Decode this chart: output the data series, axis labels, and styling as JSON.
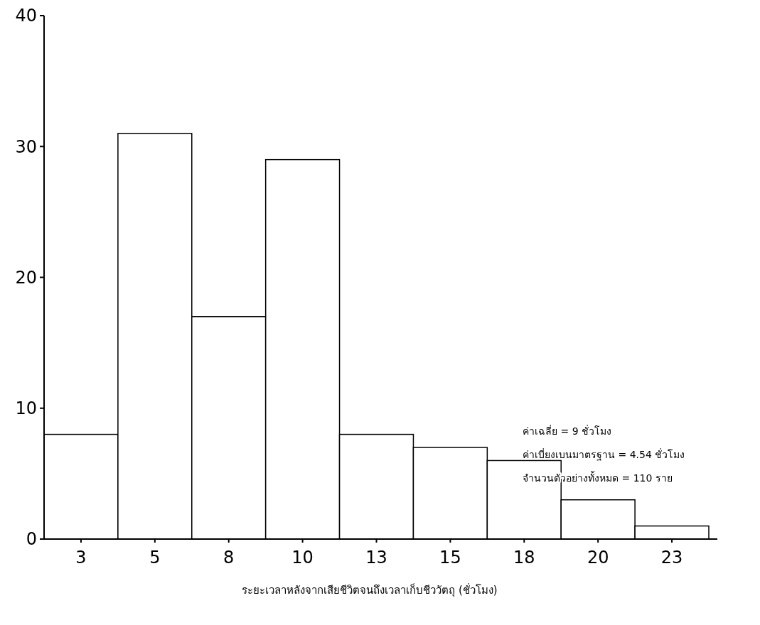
{
  "chart_data": {
    "type": "bar",
    "categories": [
      "3",
      "5",
      "8",
      "10",
      "13",
      "15",
      "18",
      "20",
      "23"
    ],
    "values": [
      8,
      31,
      17,
      29,
      8,
      7,
      6,
      3,
      1
    ],
    "color": "#ffffff",
    "ylim": [
      0,
      40
    ],
    "yticks": [
      0,
      10,
      20,
      30,
      40
    ],
    "grid": false,
    "xlabel": "ระยะเวลาหลังจากเสียชีวิตจนถึงเวลาเก็บชีววัตถุ (ชั่วโมง)",
    "annotations": [
      "ค่าเฉลี่ย = 9 ชั่วโมง",
      "ค่าเบี่ยงเบนมาตรฐาน = 4.54 ชั่วโมง",
      "จำนวนตัวอย่างทั้งหมด = 110 ราย"
    ]
  }
}
